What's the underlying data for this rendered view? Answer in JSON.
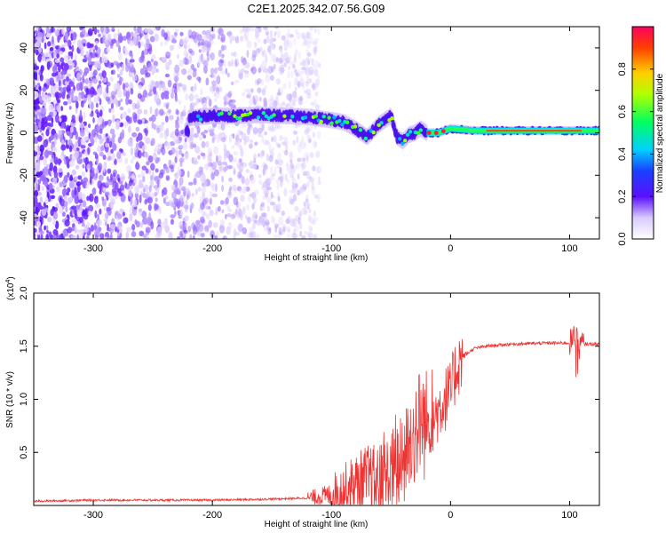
{
  "title": "C2E1.2025.342.07.56.G09",
  "chart_data": [
    {
      "type": "heatmap",
      "xlabel": "Height of straight line (km)",
      "ylabel": "Frequency (Hz)",
      "xlim": [
        -350,
        125
      ],
      "ylim": [
        -50,
        50
      ],
      "x_ticks": [
        -300,
        -200,
        -100,
        0,
        100
      ],
      "x_tick_labels": [
        "-300",
        "-200",
        "-100",
        "0",
        "100"
      ],
      "y_ticks": [
        40,
        20,
        0,
        -20,
        -40
      ],
      "y_tick_labels": [
        "40",
        "20",
        "0",
        "-20",
        "-40"
      ],
      "colorbar": {
        "label": "Normalized spectral amplitude",
        "range": [
          0,
          1
        ],
        "ticks": [
          0.0,
          0.2,
          0.4,
          0.6,
          0.8
        ],
        "tick_labels": [
          "0.0",
          "0.2",
          "0.4",
          "0.6",
          "0.8"
        ]
      },
      "ridge": {
        "x": [
          -220,
          -200,
          -180,
          -160,
          -140,
          -120,
          -100,
          -90,
          -80,
          -70,
          -60,
          -50,
          -45,
          -40,
          -35,
          -30,
          -25,
          -20,
          -10,
          0,
          20,
          50,
          100,
          125
        ],
        "y": [
          7,
          8,
          8,
          8.5,
          8,
          7.5,
          6,
          5,
          2,
          -2,
          4,
          8,
          -2,
          -4,
          -1,
          0,
          2,
          0,
          0,
          2,
          1,
          1,
          1,
          1
        ]
      },
      "noise_region": {
        "x": [
          -350,
          -150
        ],
        "y": [
          -50,
          50
        ]
      }
    },
    {
      "type": "line",
      "xlabel": "Height of straight line (km)",
      "ylabel": "SNR (10 * v/v)",
      "y_scale_label": "(x10",
      "y_scale_exponent": "4",
      "xlim": [
        -350,
        125
      ],
      "ylim": [
        0,
        2.0
      ],
      "x_ticks": [
        -300,
        -200,
        -100,
        0,
        100
      ],
      "x_tick_labels": [
        "-300",
        "-200",
        "-100",
        "0",
        "100"
      ],
      "y_ticks": [
        0.5,
        1.0,
        1.5,
        2.0
      ],
      "y_tick_labels": [
        "0.5",
        "1.0",
        "1.5",
        "2.0"
      ],
      "series": [
        {
          "name": "SNR",
          "color": "#ee3333",
          "x": [
            -350,
            -300,
            -250,
            -200,
            -150,
            -120,
            -100,
            -90,
            -80,
            -70,
            -60,
            -50,
            -40,
            -30,
            -25,
            -20,
            -15,
            -10,
            -5,
            0,
            5,
            10,
            20,
            30,
            50,
            80,
            100,
            105,
            108,
            110,
            125
          ],
          "y": [
            0.04,
            0.05,
            0.05,
            0.05,
            0.06,
            0.07,
            0.1,
            0.15,
            0.2,
            0.25,
            0.2,
            0.3,
            0.4,
            0.7,
            0.8,
            0.75,
            0.8,
            0.9,
            1.0,
            1.05,
            1.3,
            1.4,
            1.48,
            1.5,
            1.52,
            1.53,
            1.53,
            1.6,
            1.5,
            1.52,
            1.52
          ]
        }
      ]
    }
  ]
}
